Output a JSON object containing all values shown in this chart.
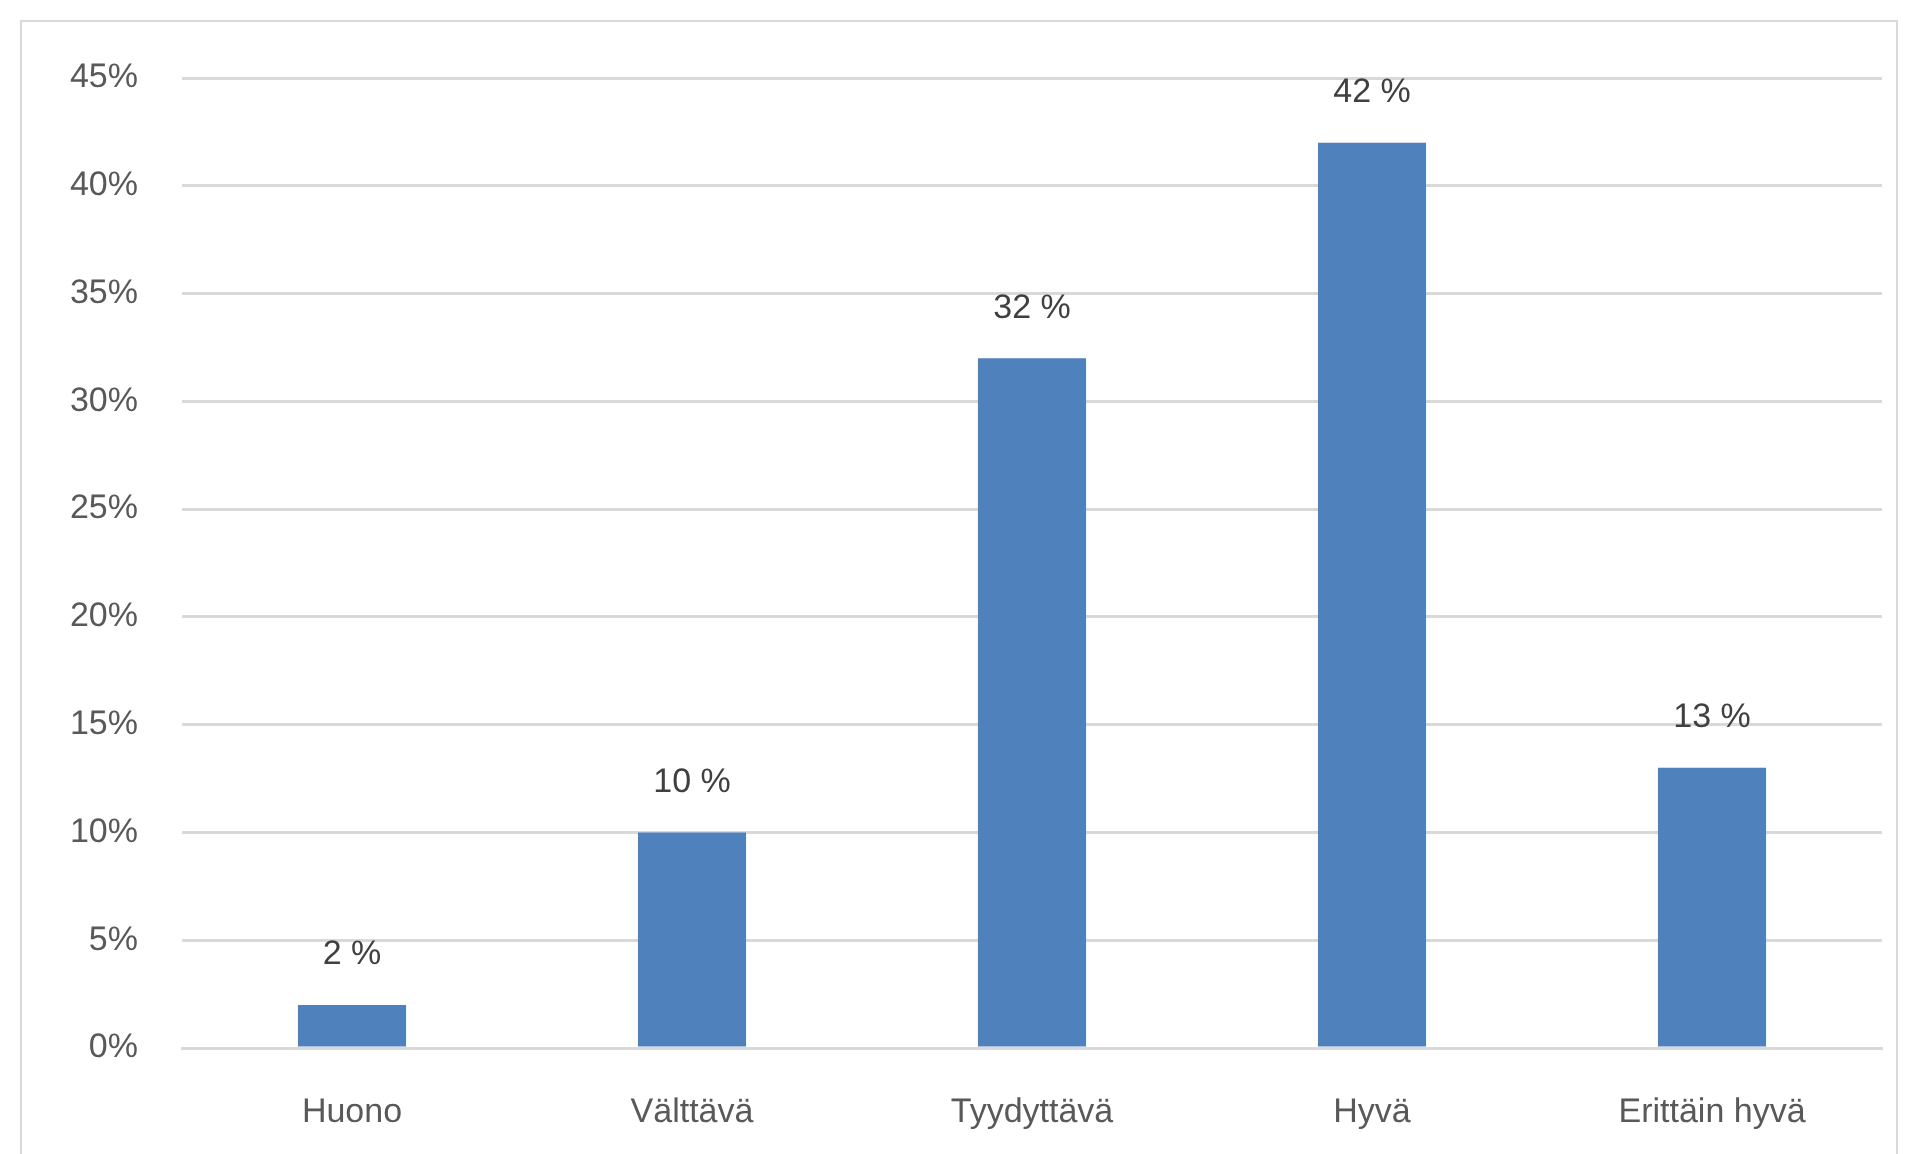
{
  "chart_data": {
    "type": "bar",
    "categories": [
      "Huono",
      "Välttävä",
      "Tyydyttävä",
      "Hyvä",
      "Erittäin hyvä"
    ],
    "values": [
      2,
      10,
      32,
      42,
      13
    ],
    "color": "#4f81bd",
    "value_labels": [
      "2 %",
      "10 %",
      "32 %",
      "42 %",
      "13 %"
    ],
    "ylim": [
      0,
      45
    ],
    "yticks": [
      {
        "value": 0,
        "label": "0%"
      },
      {
        "value": 5,
        "label": "5%"
      },
      {
        "value": 10,
        "label": "10%"
      },
      {
        "value": 15,
        "label": "15%"
      },
      {
        "value": 20,
        "label": "20%"
      },
      {
        "value": 25,
        "label": "25%"
      },
      {
        "value": 30,
        "label": "30%"
      },
      {
        "value": 35,
        "label": "35%"
      },
      {
        "value": 40,
        "label": "40%"
      },
      {
        "value": 45,
        "label": "45%"
      }
    ],
    "grid": "y"
  }
}
